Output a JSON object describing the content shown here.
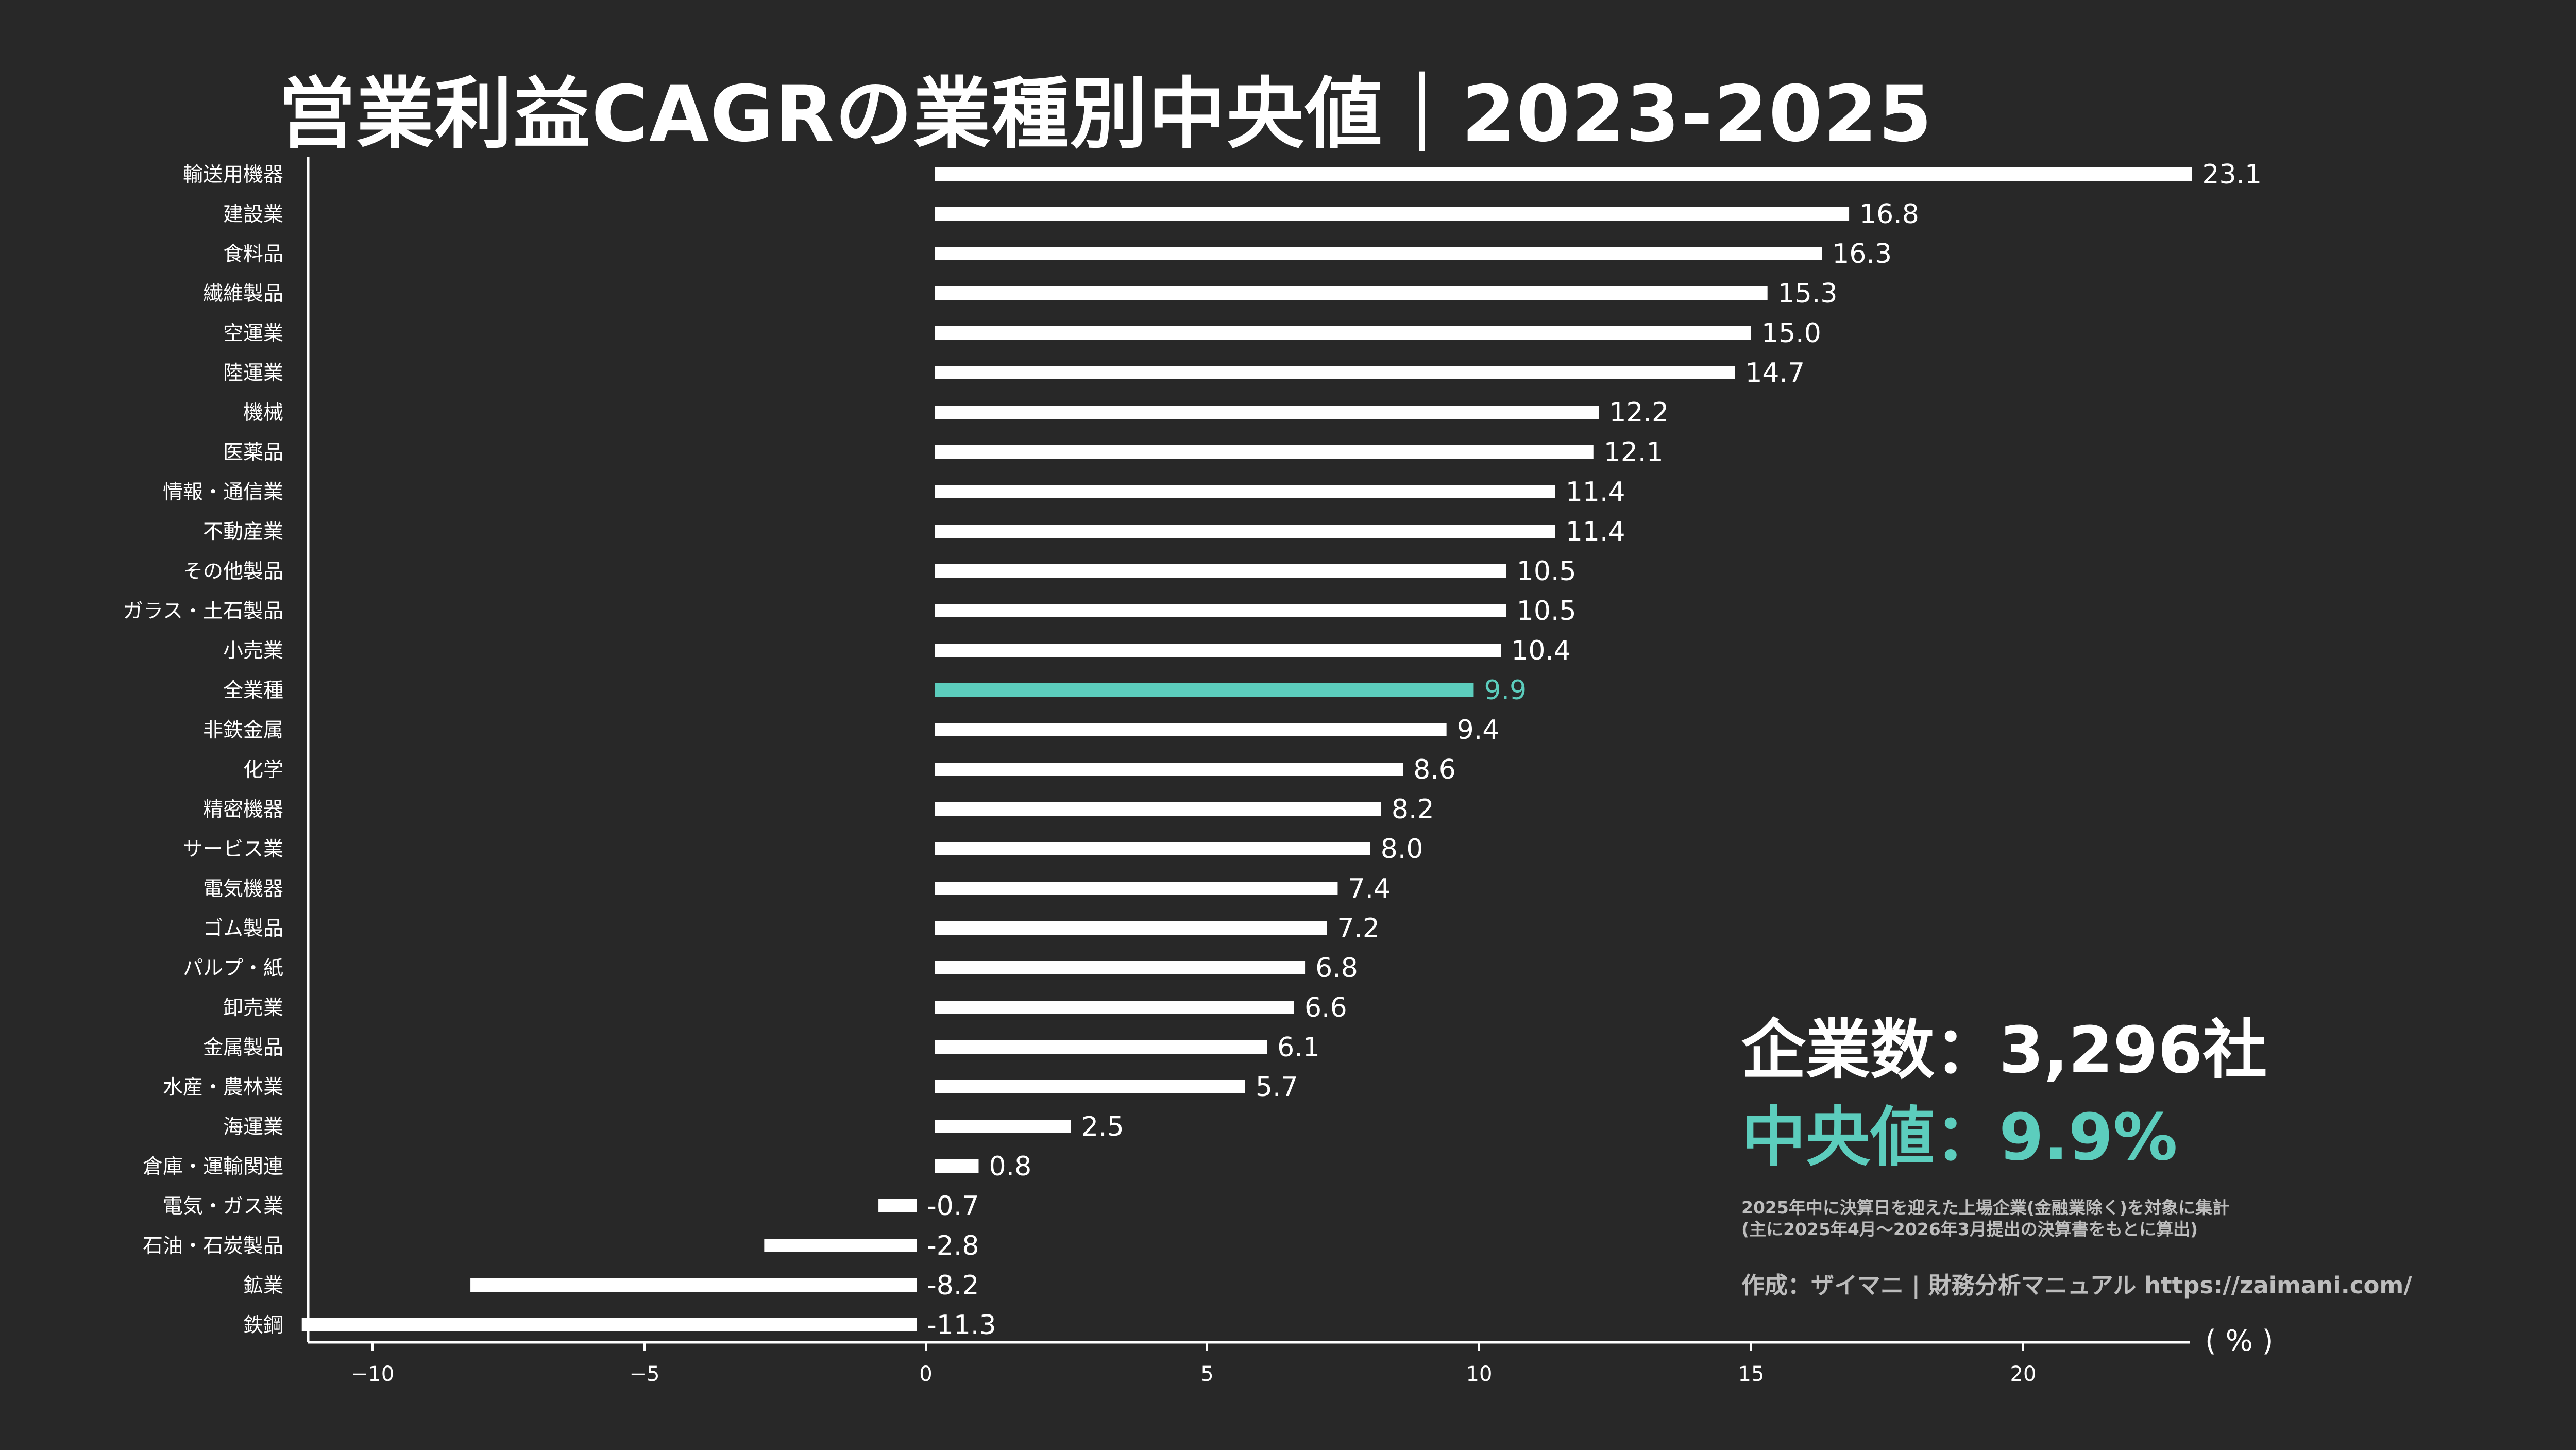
{
  "title": "営業利益CAGRの業種別中央値｜2023-2025",
  "stats": {
    "company_count": "企業数：3,296社",
    "median": "中央値：9.9%",
    "note_line1": "2025年中に決算日を迎えた上場企業(金融業除く)を対象に集計",
    "note_line2": "(主に2025年4月〜2026年3月提出の決算書をもとに算出)",
    "credit": "作成：ザイマニ | 財務分析マニュアル https://zaimani.com/"
  },
  "unit_label": "( % )",
  "colors": {
    "background": "#282828",
    "bar": "#ffffff",
    "highlight": "#5ccdbd"
  },
  "chart_data": {
    "type": "bar",
    "orientation": "horizontal",
    "categories": [
      "輸送用機器",
      "建設業",
      "食料品",
      "繊維製品",
      "空運業",
      "陸運業",
      "機械",
      "医薬品",
      "情報・通信業",
      "不動産業",
      "その他製品",
      "ガラス・土石製品",
      "小売業",
      "全業種",
      "非鉄金属",
      "化学",
      "精密機器",
      "サービス業",
      "電気機器",
      "ゴム製品",
      "パルプ・紙",
      "卸売業",
      "金属製品",
      "水産・農林業",
      "海運業",
      "倉庫・運輸関連",
      "電気・ガス業",
      "石油・石炭製品",
      "鉱業",
      "鉄鋼"
    ],
    "values": [
      23.1,
      16.8,
      16.3,
      15.3,
      15.0,
      14.7,
      12.2,
      12.1,
      11.4,
      11.4,
      10.5,
      10.5,
      10.4,
      9.9,
      9.4,
      8.6,
      8.2,
      8.0,
      7.4,
      7.2,
      6.8,
      6.6,
      6.1,
      5.7,
      2.5,
      0.8,
      -0.7,
      -2.8,
      -8.2,
      -11.3
    ],
    "value_labels": [
      "23.1",
      "16.8",
      "16.3",
      "15.3",
      "15.0",
      "14.7",
      "12.2",
      "12.1",
      "11.4",
      "11.4",
      "10.5",
      "10.5",
      "10.4",
      "9.9",
      "9.4",
      "8.6",
      "8.2",
      "8.0",
      "7.4",
      "7.2",
      "6.8",
      "6.6",
      "6.1",
      "5.7",
      "2.5",
      "0.8",
      "-0.7",
      "-2.8",
      "-8.2",
      "-11.3"
    ],
    "highlight_category": "全業種",
    "xticks": [
      -10,
      -5,
      0,
      5,
      10,
      15,
      20
    ],
    "xtick_labels": [
      "−10",
      "−5",
      "0",
      "5",
      "10",
      "15",
      "20"
    ],
    "xlim": [
      -11.3,
      23.1
    ],
    "xlabel": "( % )",
    "grid": false,
    "legend": "none"
  }
}
